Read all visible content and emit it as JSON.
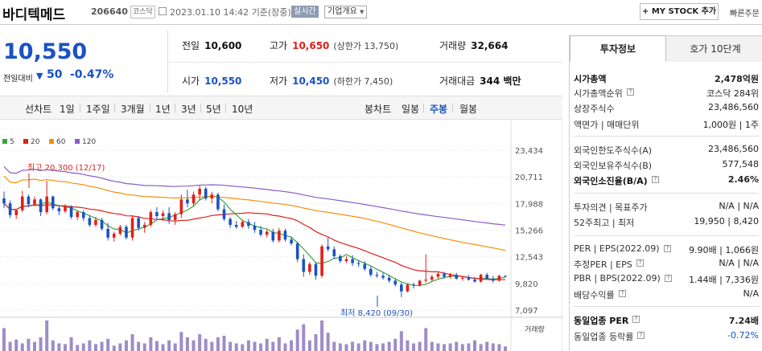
{
  "header": {
    "stock_name": "바디텍메드",
    "stock_code": "206640",
    "market": "코스닥",
    "datetime": "2023.01.10 14:42",
    "basis": "기준(장중)",
    "realtime_badge": "실시간",
    "company_info": "기업개요",
    "mystock_button": "+ MY STOCK 추가",
    "quick_order": "빠른주문"
  },
  "quote": {
    "price": "10,550",
    "change_label": "전일대비",
    "change_arrow": "▼",
    "change_value": "50",
    "change_pct": "-0.47%",
    "prev_close_label": "전일",
    "prev_close": "10,600",
    "high_label": "고가",
    "high": "10,650",
    "upper_limit": "(상한가 13,750)",
    "volume_label": "거래량",
    "volume": "32,664",
    "open_label": "시가",
    "open": "10,550",
    "low_label": "저가",
    "low": "10,450",
    "lower_limit": "(하한가 7,450)",
    "amount_label": "거래대금",
    "amount": "344 백만"
  },
  "toolbar": {
    "line_label": "선차트",
    "periods": [
      "1일",
      "1주일",
      "3개월",
      "1년",
      "3년",
      "5년",
      "10년"
    ],
    "candle_label": "봉차트",
    "candle_periods": [
      "일봉",
      "주봉",
      "월봉"
    ],
    "active_candle": "주봉"
  },
  "chart_data": {
    "type": "candlestick",
    "legend": [
      {
        "name": "5",
        "color": "#3aa53a"
      },
      {
        "name": "20",
        "color": "#e0201b"
      },
      {
        "name": "60",
        "color": "#f0900a"
      },
      {
        "name": "120",
        "color": "#8a5cc7"
      }
    ],
    "y_ticks": [
      23434,
      20711,
      17988,
      15266,
      12543,
      9820,
      7097
    ],
    "ylim": [
      7097,
      23434
    ],
    "high_annotation": "최고 20,300 (12/17)",
    "low_annotation": "최저 8,420 (09/30)",
    "volume_label": "거래량",
    "colors": {
      "up": "#e0201b",
      "down": "#1a52c4"
    },
    "candles": [
      [
        18500,
        19200,
        17500,
        18000
      ],
      [
        18000,
        18300,
        16500,
        16800
      ],
      [
        16800,
        17400,
        16400,
        17300
      ],
      [
        17300,
        19300,
        17100,
        18700
      ],
      [
        18700,
        18900,
        17600,
        17900
      ],
      [
        17900,
        18700,
        17700,
        18400
      ],
      [
        18400,
        18500,
        16700,
        17100
      ],
      [
        17100,
        20300,
        16900,
        18700
      ],
      [
        18700,
        18800,
        17300,
        17500
      ],
      [
        17500,
        17800,
        16800,
        17200
      ],
      [
        17200,
        17900,
        17000,
        17700
      ],
      [
        17700,
        17800,
        16400,
        16600
      ],
      [
        16600,
        17300,
        16300,
        17100
      ],
      [
        17100,
        17300,
        16200,
        16500
      ],
      [
        16500,
        16800,
        15600,
        15800
      ],
      [
        15800,
        16600,
        15600,
        16300
      ],
      [
        16300,
        16500,
        15200,
        15400
      ],
      [
        15400,
        16000,
        14200,
        14500
      ],
      [
        14500,
        15100,
        14100,
        14900
      ],
      [
        14900,
        15800,
        14700,
        15600
      ],
      [
        15600,
        15800,
        14300,
        14500
      ],
      [
        14500,
        16800,
        14200,
        16500
      ],
      [
        16500,
        16700,
        15200,
        15500
      ],
      [
        15500,
        16100,
        15000,
        15800
      ],
      [
        15800,
        17300,
        15600,
        17100
      ],
      [
        17100,
        17600,
        16400,
        16700
      ],
      [
        16700,
        17300,
        16200,
        17000
      ],
      [
        17000,
        17600,
        15900,
        16300
      ],
      [
        16300,
        17100,
        15800,
        16900
      ],
      [
        16900,
        18900,
        16500,
        18400
      ],
      [
        18400,
        19400,
        17600,
        18000
      ],
      [
        18000,
        19200,
        17700,
        18900
      ],
      [
        18900,
        19800,
        18300,
        19500
      ],
      [
        19500,
        19700,
        18300,
        18500
      ],
      [
        18500,
        19200,
        18000,
        18900
      ],
      [
        18900,
        19100,
        17200,
        17400
      ],
      [
        17400,
        17900,
        16200,
        16400
      ],
      [
        16400,
        16600,
        15500,
        15800
      ],
      [
        15800,
        16200,
        15400,
        15600
      ],
      [
        15600,
        16300,
        15500,
        16100
      ],
      [
        16100,
        16400,
        15400,
        15700
      ],
      [
        15700,
        16100,
        15000,
        15300
      ],
      [
        15300,
        15700,
        14600,
        14800
      ],
      [
        14800,
        15300,
        14500,
        15100
      ],
      [
        15100,
        15400,
        14000,
        14200
      ],
      [
        14200,
        15500,
        14000,
        15200
      ],
      [
        15200,
        15400,
        14100,
        14300
      ],
      [
        14300,
        14600,
        13700,
        13900
      ],
      [
        13900,
        14100,
        12000,
        12300
      ],
      [
        12300,
        12800,
        10500,
        11000
      ],
      [
        11000,
        12000,
        10700,
        11800
      ],
      [
        11800,
        12000,
        10200,
        10600
      ],
      [
        10600,
        13800,
        10400,
        13600
      ],
      [
        13600,
        14500,
        13100,
        13300
      ],
      [
        13300,
        13600,
        12300,
        12600
      ],
      [
        12600,
        12800,
        11900,
        12100
      ],
      [
        12100,
        12600,
        11900,
        12300
      ],
      [
        12300,
        12700,
        11600,
        11900
      ],
      [
        11900,
        12200,
        11500,
        11800
      ],
      [
        11800,
        12100,
        11100,
        11300
      ],
      [
        11300,
        11600,
        10500,
        10700
      ],
      [
        10700,
        11000,
        10400,
        10600
      ],
      [
        10600,
        10900,
        10200,
        10400
      ],
      [
        10400,
        10700,
        9900,
        10100
      ],
      [
        10100,
        10300,
        9500,
        9700
      ],
      [
        9700,
        9900,
        8420,
        9000
      ],
      [
        9000,
        9800,
        8900,
        9700
      ],
      [
        9700,
        9900,
        9300,
        9600
      ],
      [
        9600,
        10200,
        9500,
        10100
      ],
      [
        10100,
        12800,
        9900,
        10200
      ],
      [
        10200,
        10700,
        10000,
        10500
      ],
      [
        10500,
        11000,
        10300,
        10800
      ],
      [
        10800,
        11000,
        10300,
        10500
      ],
      [
        10500,
        10900,
        10300,
        10700
      ],
      [
        10700,
        10900,
        10200,
        10300
      ],
      [
        10300,
        10600,
        10100,
        10400
      ],
      [
        10400,
        10700,
        10100,
        10200
      ],
      [
        10200,
        10500,
        9900,
        10000
      ],
      [
        10000,
        10800,
        9900,
        10700
      ],
      [
        10700,
        10900,
        10200,
        10300
      ],
      [
        10300,
        10600,
        9900,
        10100
      ],
      [
        10100,
        10700,
        10000,
        10600
      ],
      [
        10600,
        10650,
        10450,
        10550
      ]
    ],
    "volumes": [
      30,
      12,
      15,
      10,
      16,
      12,
      18,
      40,
      14,
      10,
      9,
      18,
      8,
      10,
      14,
      9,
      12,
      16,
      7,
      10,
      14,
      22,
      12,
      10,
      18,
      13,
      9,
      14,
      10,
      25,
      18,
      14,
      22,
      16,
      12,
      18,
      20,
      12,
      10,
      9,
      14,
      12,
      10,
      16,
      12,
      18,
      10,
      14,
      28,
      35,
      14,
      22,
      40,
      24,
      12,
      10,
      9,
      12,
      10,
      14,
      12,
      9,
      10,
      12,
      16,
      26,
      14,
      10,
      12,
      30,
      12,
      10,
      9,
      10,
      12,
      9,
      10,
      14,
      9,
      12,
      10,
      9,
      6
    ],
    "volume_max": 40
  },
  "right_panel": {
    "tab_active": "투자정보",
    "tab_inactive": "호가 10단계",
    "rows": [
      {
        "k": "시가총액",
        "v": "2,478억원",
        "bold": true
      },
      {
        "k": "시가총액순위",
        "v": "코스닥 284위"
      },
      {
        "k": "상장주식수",
        "v": "23,486,560"
      },
      {
        "k": "액면가 | 매매단위",
        "v": "1,000원 | 1주"
      },
      {
        "k": "외국인한도주식수(A)",
        "v": "23,486,560"
      },
      {
        "k": "외국인보유주식수(B)",
        "v": "577,548"
      },
      {
        "k": "외국인소진율(B/A)",
        "v": "2.46%",
        "bold": true
      },
      {
        "k": "투자의견 | 목표주가",
        "v": "N/A | N/A"
      },
      {
        "k": "52주최고 | 최저",
        "v": "19,950 | 8,420"
      },
      {
        "k": "PER | EPS(2022.09)",
        "v": "9.90배 | 1,066원"
      },
      {
        "k": "추정PER | EPS",
        "v": "N/A | N/A"
      },
      {
        "k": "PBR | BPS(2022.09)",
        "v": "1.44배 | 7,336원"
      },
      {
        "k": "배당수익률",
        "v": "N/A"
      },
      {
        "k": "동일업종 PER",
        "v": "7.24배",
        "bold": true
      },
      {
        "k": "동일업종 등락률",
        "v": "-0.72%",
        "blue": true
      }
    ]
  }
}
